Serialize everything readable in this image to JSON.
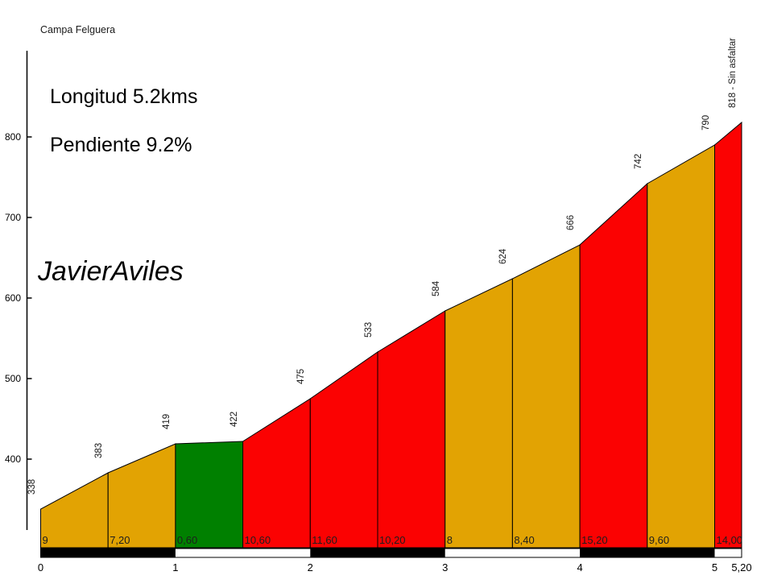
{
  "header": {
    "title": "Campa Felguera"
  },
  "overlay": {
    "length_text": "Longitud 5.2kms",
    "slope_text": "Pendiente 9.2%",
    "watermark": "JavierAviles"
  },
  "chart_data": {
    "type": "area",
    "title": "Campa Felguera",
    "x_unit": "km",
    "y_unit": "m",
    "x_km": [
      0,
      0.5,
      1,
      1.5,
      2,
      2.5,
      3,
      3.5,
      4,
      4.5,
      5,
      5.2
    ],
    "elevations_m": [
      338,
      383,
      419,
      422,
      475,
      533,
      584,
      624,
      666,
      742,
      790,
      818
    ],
    "segments": [
      {
        "from_km": 0,
        "to_km": 0.5,
        "start_elev": 338,
        "end_elev": 383,
        "gradient_label": "9",
        "steepness": "moderate"
      },
      {
        "from_km": 0.5,
        "to_km": 1,
        "start_elev": 383,
        "end_elev": 419,
        "gradient_label": "7,20",
        "steepness": "moderate"
      },
      {
        "from_km": 1,
        "to_km": 1.5,
        "start_elev": 419,
        "end_elev": 422,
        "gradient_label": "0,60",
        "steepness": "easy"
      },
      {
        "from_km": 1.5,
        "to_km": 2,
        "start_elev": 422,
        "end_elev": 475,
        "gradient_label": "10,60",
        "steepness": "steep"
      },
      {
        "from_km": 2,
        "to_km": 2.5,
        "start_elev": 475,
        "end_elev": 533,
        "gradient_label": "11,60",
        "steepness": "steep"
      },
      {
        "from_km": 2.5,
        "to_km": 3,
        "start_elev": 533,
        "end_elev": 584,
        "gradient_label": "10,20",
        "steepness": "steep"
      },
      {
        "from_km": 3,
        "to_km": 3.5,
        "start_elev": 584,
        "end_elev": 624,
        "gradient_label": "8",
        "steepness": "moderate"
      },
      {
        "from_km": 3.5,
        "to_km": 4,
        "start_elev": 624,
        "end_elev": 666,
        "gradient_label": "8,40",
        "steepness": "moderate"
      },
      {
        "from_km": 4,
        "to_km": 4.5,
        "start_elev": 666,
        "end_elev": 742,
        "gradient_label": "15,20",
        "steepness": "steep"
      },
      {
        "from_km": 4.5,
        "to_km": 5,
        "start_elev": 742,
        "end_elev": 790,
        "gradient_label": "9,60",
        "steepness": "moderate"
      },
      {
        "from_km": 5,
        "to_km": 5.2,
        "start_elev": 790,
        "end_elev": 818,
        "gradient_label": "14,00",
        "steepness": "steep"
      }
    ],
    "summit_label": "818 - Sin asfaltar",
    "yticks": [
      400,
      500,
      600,
      700,
      800
    ],
    "xticks": [
      {
        "km": 0,
        "label": "0"
      },
      {
        "km": 1,
        "label": "1"
      },
      {
        "km": 2,
        "label": "2"
      },
      {
        "km": 3,
        "label": "3"
      },
      {
        "km": 4,
        "label": "4"
      },
      {
        "km": 5,
        "label": "5"
      },
      {
        "km": 5.2,
        "label": "5,20"
      }
    ],
    "km_bar": [
      {
        "from_km": 0,
        "to_km": 1,
        "fill": "black"
      },
      {
        "from_km": 1,
        "to_km": 2,
        "fill": "white"
      },
      {
        "from_km": 2,
        "to_km": 3,
        "fill": "black"
      },
      {
        "from_km": 3,
        "to_km": 4,
        "fill": "white"
      },
      {
        "from_km": 4,
        "to_km": 5,
        "fill": "black"
      },
      {
        "from_km": 5,
        "to_km": 5.2,
        "fill": "white"
      }
    ],
    "colors": {
      "easy": "#008000",
      "moderate": "#E2A303",
      "steep": "#FB0202",
      "outline": "#000000",
      "bar_black": "#000000",
      "bar_white": "#FFFFFF",
      "axis": "#000000"
    },
    "legend": "off",
    "grid": "off"
  }
}
